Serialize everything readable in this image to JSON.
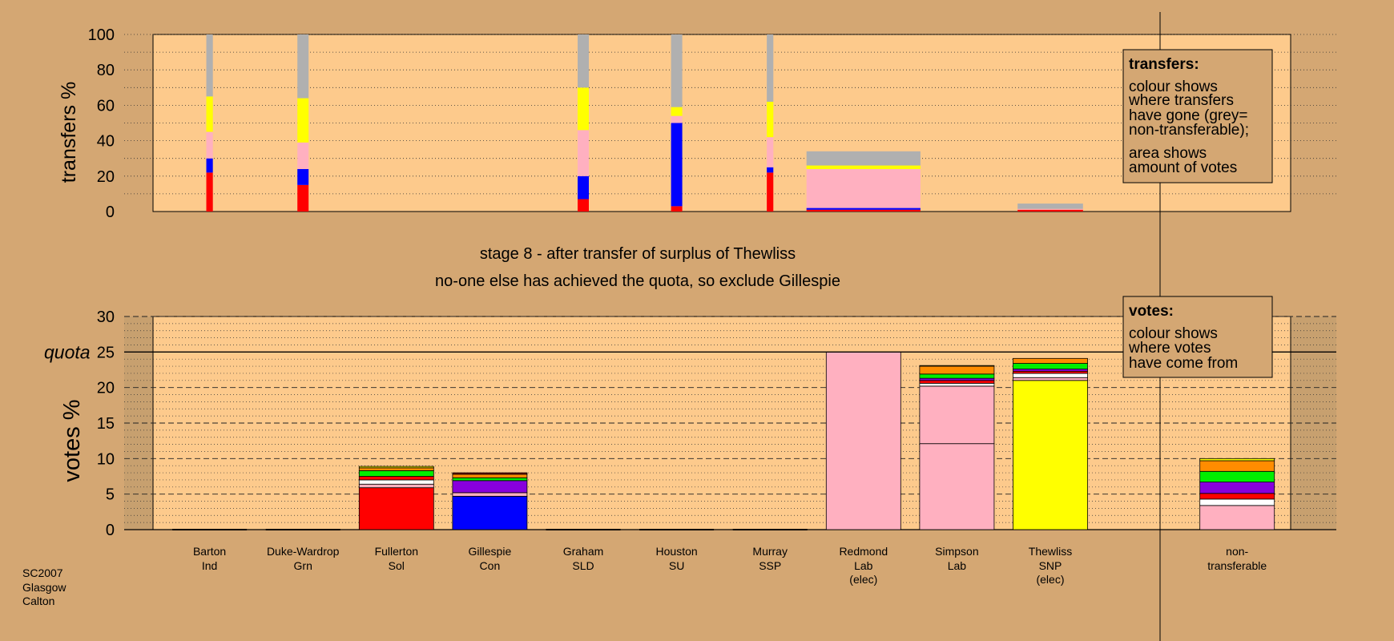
{
  "colors": {
    "background": "#d4a773",
    "panel": "#fdca8c",
    "Ind": "#ff0000",
    "Grn": "#00ee00",
    "Sol": "#ff0000",
    "Con": "#0000ff",
    "SLD": "#ff8c00",
    "SU": "#ffffff",
    "SSP": "#ff0000",
    "Lab": "#ffb0c0",
    "SNP": "#ffff00",
    "grey": "#b0b0b0",
    "purple": "#8800dd",
    "dark-red": "#8b0000"
  },
  "header": {
    "stage": "stage 8 - after transfer of surplus of Thewliss",
    "note": "no-one else has achieved the quota, so exclude Gillespie"
  },
  "footer": {
    "line1": "SC2007",
    "line2": "Glasgow",
    "line3": "Calton"
  },
  "legend_transfers": {
    "title": "transfers:",
    "line1": "colour shows",
    "line2": "where transfers",
    "line3": "have gone (grey=",
    "line4": "non-transferable);",
    "line5": "area shows",
    "line6": "amount of votes"
  },
  "legend_votes": {
    "title": "votes:",
    "line1": "colour shows",
    "line2": "where votes",
    "line3": "have come from"
  },
  "quota_label": "quota",
  "chart_data": [
    {
      "type": "bar",
      "name": "transfers",
      "ylabel": "transfers %",
      "ylim": [
        0,
        100
      ],
      "yticks": [
        0,
        20,
        40,
        60,
        80,
        100
      ],
      "grid": true,
      "bars": [
        {
          "x": 1,
          "width": 0.07,
          "segments": [
            {
              "value": 22,
              "color": "#ff0000"
            },
            {
              "value": 8,
              "color": "#0000ff"
            },
            {
              "value": 15,
              "color": "#ffb0c0"
            },
            {
              "value": 20,
              "color": "#ffff00"
            },
            {
              "value": 35,
              "color": "#b0b0b0"
            }
          ]
        },
        {
          "x": 2,
          "width": 0.12,
          "segments": [
            {
              "value": 15,
              "color": "#ff0000"
            },
            {
              "value": 9,
              "color": "#0000ff"
            },
            {
              "value": 15,
              "color": "#ffb0c0"
            },
            {
              "value": 25,
              "color": "#ffff00"
            },
            {
              "value": 36,
              "color": "#b0b0b0"
            }
          ]
        },
        {
          "x": 5,
          "width": 0.12,
          "segments": [
            {
              "value": 7,
              "color": "#ff0000"
            },
            {
              "value": 13,
              "color": "#0000ff"
            },
            {
              "value": 26,
              "color": "#ffb0c0"
            },
            {
              "value": 24,
              "color": "#ffff00"
            },
            {
              "value": 30,
              "color": "#b0b0b0"
            }
          ]
        },
        {
          "x": 6,
          "width": 0.12,
          "segments": [
            {
              "value": 3,
              "color": "#ff0000"
            },
            {
              "value": 47,
              "color": "#0000ff"
            },
            {
              "value": 4,
              "color": "#ffb0c0"
            },
            {
              "value": 5,
              "color": "#ffff00"
            },
            {
              "value": 41,
              "color": "#b0b0b0"
            }
          ]
        },
        {
          "x": 7,
          "width": 0.07,
          "segments": [
            {
              "value": 22,
              "color": "#ff0000"
            },
            {
              "value": 3,
              "color": "#0000ff"
            },
            {
              "value": 17,
              "color": "#ffb0c0"
            },
            {
              "value": 20,
              "color": "#ffff00"
            },
            {
              "value": 38,
              "color": "#b0b0b0"
            }
          ]
        },
        {
          "x": 8,
          "width": 1.22,
          "segments": [
            {
              "value": 1,
              "color": "#ff0000"
            },
            {
              "value": 1,
              "color": "#0000ff"
            },
            {
              "value": 22,
              "color": "#ffb0c0"
            },
            {
              "value": 2,
              "color": "#ffff00"
            },
            {
              "value": 8,
              "color": "#b0b0b0"
            }
          ]
        },
        {
          "x": 10,
          "width": 0.7,
          "segments": [
            {
              "value": 1,
              "color": "#ff0000"
            },
            {
              "value": 0.5,
              "color": "#ffb0c0"
            },
            {
              "value": 3,
              "color": "#b0b0b0"
            }
          ]
        }
      ]
    },
    {
      "type": "bar",
      "name": "votes",
      "ylabel": "votes %",
      "ylim": [
        0,
        30
      ],
      "yticks": [
        0,
        5,
        10,
        15,
        20,
        25,
        30
      ],
      "quota": 25,
      "grid": true,
      "categories": [
        {
          "x": 1,
          "name": "Barton",
          "party": "Ind",
          "note": ""
        },
        {
          "x": 2,
          "name": "Duke-Wardrop",
          "party": "Grn",
          "note": ""
        },
        {
          "x": 3,
          "name": "Fullerton",
          "party": "Sol",
          "note": ""
        },
        {
          "x": 4,
          "name": "Gillespie",
          "party": "Con",
          "note": ""
        },
        {
          "x": 5,
          "name": "Graham",
          "party": "SLD",
          "note": ""
        },
        {
          "x": 6,
          "name": "Houston",
          "party": "SU",
          "note": ""
        },
        {
          "x": 7,
          "name": "Murray",
          "party": "SSP",
          "note": ""
        },
        {
          "x": 8,
          "name": "Redmond",
          "party": "Lab",
          "note": "(elec)"
        },
        {
          "x": 9,
          "name": "Simpson",
          "party": "Lab",
          "note": ""
        },
        {
          "x": 10,
          "name": "Thewliss",
          "party": "SNP",
          "note": "(elec)"
        },
        {
          "x": 12,
          "name": "non-",
          "party": "transferable",
          "note": ""
        }
      ],
      "bars": [
        {
          "x": 3,
          "segments": [
            {
              "value": 5.9,
              "color": "#ff0000"
            },
            {
              "value": 0.5,
              "color": "#ffb0c0"
            },
            {
              "value": 0.6,
              "color": "#ffffff"
            },
            {
              "value": 0.5,
              "color": "#ff0000"
            },
            {
              "value": 0.8,
              "color": "#00ee00"
            },
            {
              "value": 0.4,
              "color": "#ff8c00"
            },
            {
              "value": 0.2,
              "color": "#ffff00"
            }
          ]
        },
        {
          "x": 4,
          "segments": [
            {
              "value": 4.7,
              "color": "#0000ff"
            },
            {
              "value": 0.5,
              "color": "#ffb0c0"
            },
            {
              "value": 1.7,
              "color": "#8800dd"
            },
            {
              "value": 0.4,
              "color": "#00ee00"
            },
            {
              "value": 0.5,
              "color": "#ff8c00"
            },
            {
              "value": 0.2,
              "color": "#8b0000"
            }
          ]
        },
        {
          "x": 8,
          "segments": [
            {
              "value": 25.0,
              "color": "#ffb0c0"
            }
          ]
        },
        {
          "x": 9,
          "segments": [
            {
              "value": 12.1,
              "color": "#ffb0c0"
            },
            {
              "value": 8.1,
              "color": "#ffb0c0"
            },
            {
              "value": 0.4,
              "color": "#ffffff"
            },
            {
              "value": 0.4,
              "color": "#ff0000"
            },
            {
              "value": 0.3,
              "color": "#8800dd"
            },
            {
              "value": 0.6,
              "color": "#00ee00"
            },
            {
              "value": 1.1,
              "color": "#ff8c00"
            },
            {
              "value": 0.1,
              "color": "#ffff00"
            }
          ]
        },
        {
          "x": 10,
          "segments": [
            {
              "value": 21.0,
              "color": "#ffff00"
            },
            {
              "value": 0.4,
              "color": "#ffb0c0"
            },
            {
              "value": 0.6,
              "color": "#ffffff"
            },
            {
              "value": 0.3,
              "color": "#ff0000"
            },
            {
              "value": 0.3,
              "color": "#8800dd"
            },
            {
              "value": 0.8,
              "color": "#00ee00"
            },
            {
              "value": 0.7,
              "color": "#ff8c00"
            }
          ]
        },
        {
          "x": 12,
          "segments": [
            {
              "value": 3.4,
              "color": "#ffb0c0"
            },
            {
              "value": 0.9,
              "color": "#ffffff"
            },
            {
              "value": 0.8,
              "color": "#ff0000"
            },
            {
              "value": 1.6,
              "color": "#8800dd"
            },
            {
              "value": 1.5,
              "color": "#00ee00"
            },
            {
              "value": 1.5,
              "color": "#ff8c00"
            },
            {
              "value": 0.3,
              "color": "#ffff00"
            }
          ]
        }
      ]
    }
  ]
}
